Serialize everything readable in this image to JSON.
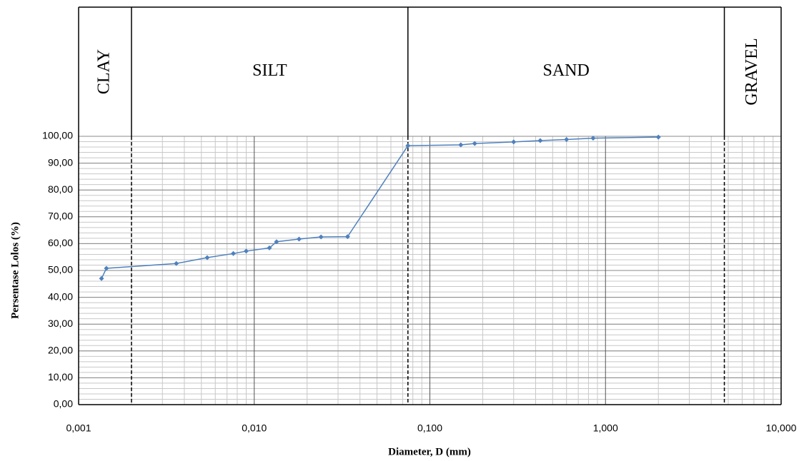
{
  "chart_data": {
    "type": "line",
    "x_label": "Diameter, D (mm)",
    "y_label": "Persentase Lolos (%)",
    "x_scale": "log",
    "xlim": [
      0.001,
      10
    ],
    "xticks": [
      {
        "value": 0.001,
        "label": "0,001"
      },
      {
        "value": 0.01,
        "label": "0,010"
      },
      {
        "value": 0.1,
        "label": "0,100"
      },
      {
        "value": 1,
        "label": "1,000"
      },
      {
        "value": 10,
        "label": "10,000"
      }
    ],
    "ylim": [
      0,
      100
    ],
    "yticks": [
      {
        "value": 0,
        "label": "0,00"
      },
      {
        "value": 10,
        "label": "10,00"
      },
      {
        "value": 20,
        "label": "20,00"
      },
      {
        "value": 30,
        "label": "30,00"
      },
      {
        "value": 40,
        "label": "40,00"
      },
      {
        "value": 50,
        "label": "50,00"
      },
      {
        "value": 60,
        "label": "60,00"
      },
      {
        "value": 70,
        "label": "70,00"
      },
      {
        "value": 80,
        "label": "80,00"
      },
      {
        "value": 90,
        "label": "90,00"
      },
      {
        "value": 100,
        "label": "100,00"
      }
    ],
    "grid": true,
    "minor_grid": true,
    "zones": [
      {
        "label": "CLAY",
        "from": 0.001,
        "to": 0.002
      },
      {
        "label": "SILT",
        "from": 0.002,
        "to": 0.075
      },
      {
        "label": "SAND",
        "from": 0.075,
        "to": 4.75
      },
      {
        "label": "GRAVEL",
        "from": 4.75,
        "to": 10
      }
    ],
    "x": [
      0.00135,
      0.00144,
      0.0036,
      0.0054,
      0.0076,
      0.009,
      0.0122,
      0.0134,
      0.018,
      0.024,
      0.034,
      0.075,
      0.15,
      0.18,
      0.3,
      0.425,
      0.6,
      0.85,
      2.0
    ],
    "series": [
      {
        "color": "#4f81bd",
        "values": [
          47,
          50.8,
          52.6,
          54.8,
          56.3,
          57.2,
          58.4,
          60.7,
          61.7,
          62.5,
          62.6,
          96.5,
          96.8,
          97.3,
          97.9,
          98.4,
          98.8,
          99.3,
          99.7
        ]
      }
    ]
  }
}
